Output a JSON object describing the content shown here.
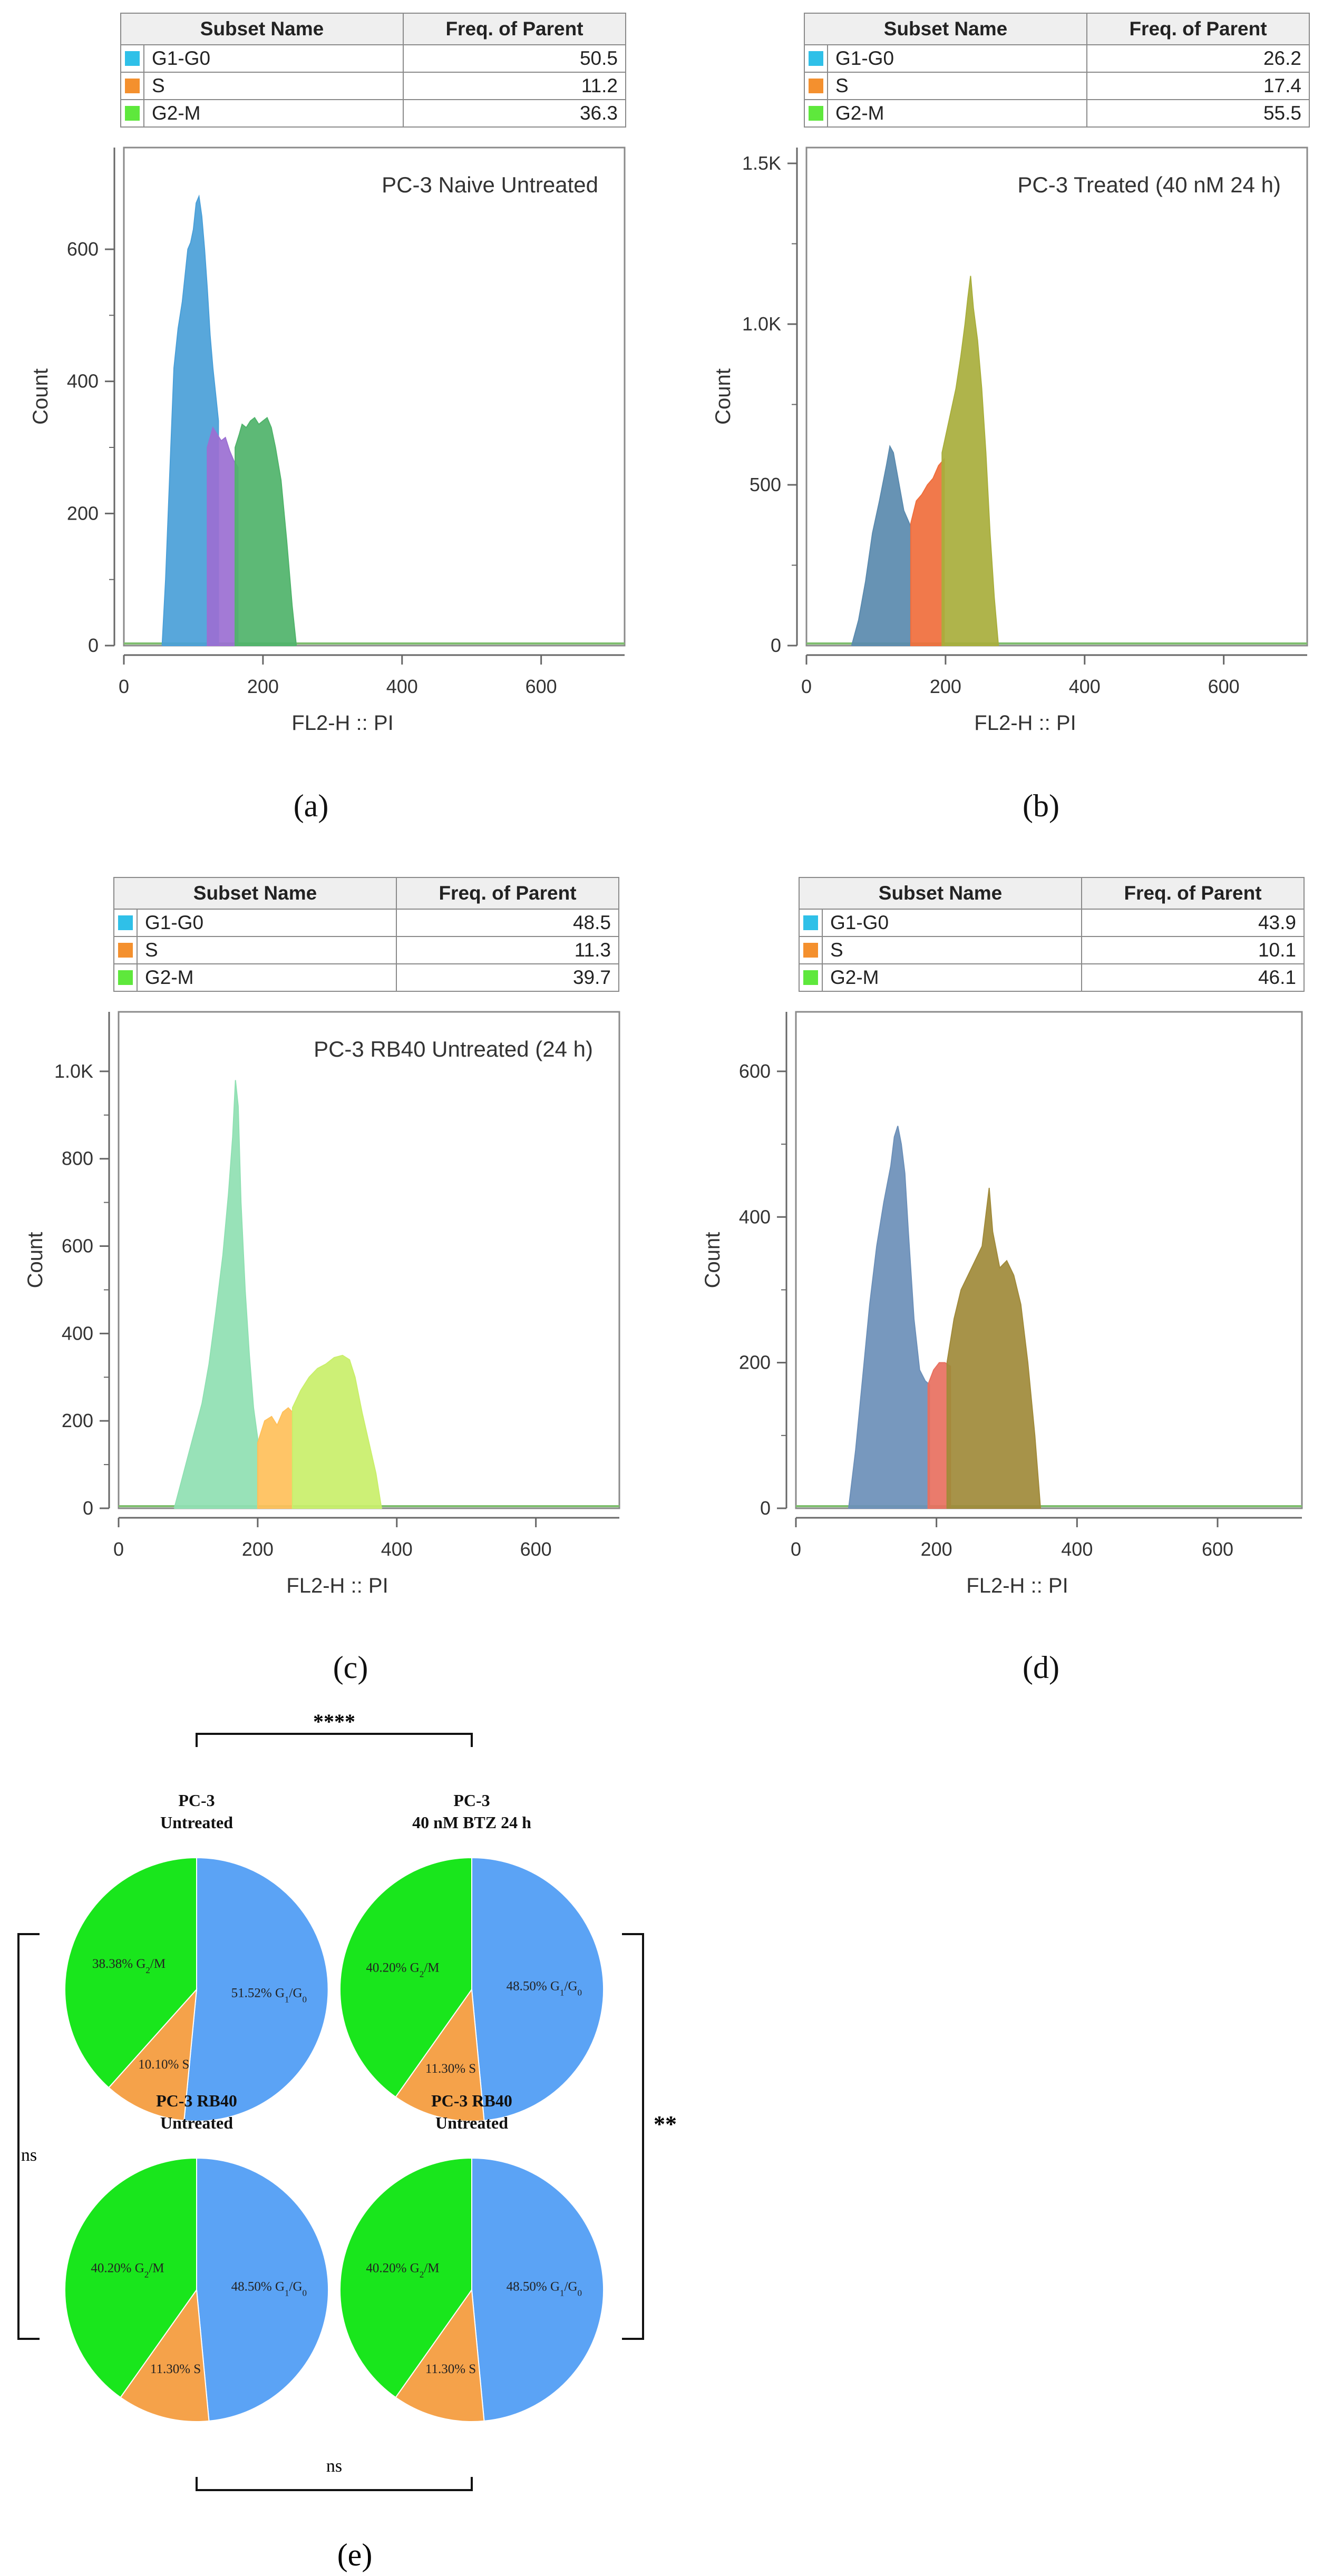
{
  "colors": {
    "g1": "#2fc0e8",
    "s": "#f4902e",
    "g2": "#5ee83c"
  },
  "table_headers": {
    "subset": "Subset Name",
    "freq": "Freq. of Parent"
  },
  "panels": [
    {
      "caption": "(a)",
      "title": "PC-3 Naive Untreated",
      "xlabel": "FL2-H :: PI",
      "ylabel": "Count",
      "xticks": [
        "0",
        "200",
        "400",
        "600"
      ],
      "yticks": [
        "0",
        "200",
        "400",
        "600"
      ],
      "subsets": [
        {
          "name": "G1-G0",
          "freq": "50.5"
        },
        {
          "name": "S",
          "freq": "11.2"
        },
        {
          "name": "G2-M",
          "freq": "36.3"
        }
      ]
    },
    {
      "caption": "(b)",
      "title": "PC-3 Treated (40 nM 24 h)",
      "xlabel": "FL2-H :: PI",
      "ylabel": "Count",
      "xticks": [
        "0",
        "200",
        "400",
        "600"
      ],
      "yticks": [
        "0",
        "500",
        "1.0K",
        "1.5K"
      ],
      "subsets": [
        {
          "name": "G1-G0",
          "freq": "26.2"
        },
        {
          "name": "S",
          "freq": "17.4"
        },
        {
          "name": "G2-M",
          "freq": "55.5"
        }
      ]
    },
    {
      "caption": "(c)",
      "title": "PC-3 RB40 Untreated (24 h)",
      "xlabel": "FL2-H :: PI",
      "ylabel": "Count",
      "xticks": [
        "0",
        "200",
        "400",
        "600"
      ],
      "yticks": [
        "0",
        "200",
        "400",
        "600",
        "800",
        "1.0K"
      ],
      "subsets": [
        {
          "name": "G1-G0",
          "freq": "48.5"
        },
        {
          "name": "S",
          "freq": "11.3"
        },
        {
          "name": "G2-M",
          "freq": "39.7"
        }
      ]
    },
    {
      "caption": "(d)",
      "title": "",
      "xlabel": "FL2-H :: PI",
      "ylabel": "Count",
      "xticks": [
        "0",
        "200",
        "400",
        "600"
      ],
      "yticks": [
        "0",
        "200",
        "400",
        "600"
      ],
      "subsets": [
        {
          "name": "G1-G0",
          "freq": "43.9"
        },
        {
          "name": "S",
          "freq": "10.1"
        },
        {
          "name": "G2-M",
          "freq": "46.1"
        }
      ]
    }
  ],
  "chart_data": [
    {
      "type": "area",
      "title": "PC-3 Naive Untreated",
      "xlabel": "FL2-H :: PI",
      "ylabel": "Count",
      "xlim": [
        0,
        720
      ],
      "ylim": [
        0,
        730
      ],
      "series": [
        {
          "name": "G1-G0",
          "color": "#4a9fd8",
          "points": [
            [
              55,
              0
            ],
            [
              60,
              100
            ],
            [
              66,
              260
            ],
            [
              72,
              420
            ],
            [
              78,
              480
            ],
            [
              84,
              520
            ],
            [
              88,
              560
            ],
            [
              92,
              600
            ],
            [
              96,
              610
            ],
            [
              100,
              630
            ],
            [
              104,
              670
            ],
            [
              108,
              680
            ],
            [
              112,
              650
            ],
            [
              116,
              600
            ],
            [
              120,
              540
            ],
            [
              124,
              470
            ],
            [
              128,
              420
            ],
            [
              132,
              380
            ],
            [
              136,
              340
            ]
          ]
        },
        {
          "name": "S",
          "color": "#9b6fd2",
          "points": [
            [
              120,
              300
            ],
            [
              128,
              330
            ],
            [
              134,
              320
            ],
            [
              140,
              310
            ],
            [
              146,
              315
            ],
            [
              152,
              295
            ],
            [
              158,
              280
            ],
            [
              164,
              270
            ]
          ]
        },
        {
          "name": "G2-M",
          "color": "#4fb36a",
          "points": [
            [
              160,
              300
            ],
            [
              166,
              320
            ],
            [
              170,
              335
            ],
            [
              176,
              330
            ],
            [
              182,
              340
            ],
            [
              188,
              345
            ],
            [
              194,
              335
            ],
            [
              200,
              340
            ],
            [
              206,
              345
            ],
            [
              212,
              330
            ],
            [
              218,
              300
            ],
            [
              226,
              250
            ],
            [
              234,
              160
            ],
            [
              242,
              60
            ],
            [
              248,
              0
            ]
          ]
        }
      ]
    },
    {
      "type": "area",
      "title": "PC-3 Treated (40 nM 24 h)",
      "xlabel": "FL2-H :: PI",
      "ylabel": "Count",
      "xlim": [
        0,
        720
      ],
      "ylim": [
        0,
        1500
      ],
      "series": [
        {
          "name": "G1-G0",
          "color": "#5a8aae",
          "points": [
            [
              65,
              0
            ],
            [
              75,
              80
            ],
            [
              85,
              200
            ],
            [
              95,
              350
            ],
            [
              105,
              450
            ],
            [
              115,
              560
            ],
            [
              120,
              620
            ],
            [
              125,
              600
            ],
            [
              130,
              540
            ],
            [
              140,
              420
            ],
            [
              150,
              370
            ]
          ]
        },
        {
          "name": "S",
          "color": "#f06e3c",
          "points": [
            [
              150,
              380
            ],
            [
              158,
              450
            ],
            [
              166,
              470
            ],
            [
              174,
              500
            ],
            [
              182,
              520
            ],
            [
              190,
              560
            ],
            [
              198,
              580
            ]
          ]
        },
        {
          "name": "G2-M",
          "color": "#a8ae3c",
          "points": [
            [
              195,
              600
            ],
            [
              205,
              700
            ],
            [
              215,
              800
            ],
            [
              222,
              900
            ],
            [
              228,
              1000
            ],
            [
              232,
              1080
            ],
            [
              236,
              1150
            ],
            [
              240,
              1050
            ],
            [
              246,
              950
            ],
            [
              252,
              800
            ],
            [
              258,
              600
            ],
            [
              264,
              350
            ],
            [
              270,
              150
            ],
            [
              276,
              0
            ]
          ]
        }
      ]
    },
    {
      "type": "area",
      "title": "PC-3 RB40 Untreated (24 h)",
      "xlabel": "FL2-H :: PI",
      "ylabel": "Count",
      "xlim": [
        0,
        720
      ],
      "ylim": [
        0,
        1100
      ],
      "series": [
        {
          "name": "G1-G0",
          "color": "#8fe0b2",
          "points": [
            [
              80,
              0
            ],
            [
              90,
              60
            ],
            [
              100,
              120
            ],
            [
              110,
              180
            ],
            [
              120,
              240
            ],
            [
              130,
              330
            ],
            [
              140,
              450
            ],
            [
              150,
              580
            ],
            [
              158,
              720
            ],
            [
              164,
              850
            ],
            [
              168,
              980
            ],
            [
              172,
              920
            ],
            [
              176,
              700
            ],
            [
              182,
              500
            ],
            [
              188,
              350
            ],
            [
              194,
              230
            ],
            [
              200,
              160
            ]
          ]
        },
        {
          "name": "S",
          "color": "#ffc05a",
          "points": [
            [
              200,
              150
            ],
            [
              210,
              200
            ],
            [
              220,
              210
            ],
            [
              228,
              190
            ],
            [
              236,
              220
            ],
            [
              244,
              230
            ],
            [
              250,
              220
            ]
          ]
        },
        {
          "name": "G2-M",
          "color": "#c9ef6a",
          "points": [
            [
              250,
              230
            ],
            [
              262,
              270
            ],
            [
              274,
              300
            ],
            [
              286,
              320
            ],
            [
              298,
              330
            ],
            [
              310,
              345
            ],
            [
              322,
              350
            ],
            [
              332,
              340
            ],
            [
              340,
              300
            ],
            [
              350,
              220
            ],
            [
              360,
              150
            ],
            [
              370,
              80
            ],
            [
              378,
              0
            ]
          ]
        }
      ]
    },
    {
      "type": "area",
      "title": "",
      "xlabel": "FL2-H :: PI",
      "ylabel": "Count",
      "xlim": [
        0,
        720
      ],
      "ylim": [
        0,
        660
      ],
      "series": [
        {
          "name": "G1-G0",
          "color": "#6b8fb8",
          "points": [
            [
              75,
              0
            ],
            [
              85,
              80
            ],
            [
              95,
              180
            ],
            [
              105,
              280
            ],
            [
              115,
              360
            ],
            [
              125,
              420
            ],
            [
              135,
              470
            ],
            [
              140,
              510
            ],
            [
              145,
              525
            ],
            [
              150,
              500
            ],
            [
              155,
              460
            ],
            [
              160,
              380
            ],
            [
              168,
              260
            ],
            [
              176,
              190
            ],
            [
              184,
              175
            ],
            [
              190,
              170
            ]
          ]
        },
        {
          "name": "S",
          "color": "#e87060",
          "points": [
            [
              188,
              170
            ],
            [
              196,
              190
            ],
            [
              204,
              200
            ],
            [
              212,
              200
            ],
            [
              220,
              195
            ]
          ]
        },
        {
          "name": "G2-M",
          "color": "#a08a3a",
          "points": [
            [
              215,
              200
            ],
            [
              225,
              260
            ],
            [
              235,
              300
            ],
            [
              245,
              320
            ],
            [
              255,
              340
            ],
            [
              265,
              360
            ],
            [
              270,
              400
            ],
            [
              275,
              440
            ],
            [
              280,
              380
            ],
            [
              290,
              330
            ],
            [
              300,
              340
            ],
            [
              310,
              320
            ],
            [
              320,
              280
            ],
            [
              330,
              200
            ],
            [
              340,
              100
            ],
            [
              348,
              0
            ]
          ]
        }
      ]
    },
    {
      "type": "pie",
      "title": "PC-3 Untreated",
      "slices": [
        {
          "label": "G1/G0",
          "value": 51.52
        },
        {
          "label": "S",
          "value": 10.1
        },
        {
          "label": "G2/M",
          "value": 38.38
        }
      ]
    },
    {
      "type": "pie",
      "title": "PC-3 40 nM BTZ 24 h",
      "slices": [
        {
          "label": "G1/G0",
          "value": 48.5
        },
        {
          "label": "S",
          "value": 11.3
        },
        {
          "label": "G2/M",
          "value": 40.2
        }
      ]
    },
    {
      "type": "pie",
      "title": "PC-3 RB40 Untreated",
      "slices": [
        {
          "label": "G1/G0",
          "value": 48.5
        },
        {
          "label": "S",
          "value": 11.3
        },
        {
          "label": "G2/M",
          "value": 40.2
        }
      ]
    },
    {
      "type": "pie",
      "title": "PC-3 RB40 Untreated",
      "slices": [
        {
          "label": "G1/G0",
          "value": 48.5
        },
        {
          "label": "S",
          "value": 11.3
        },
        {
          "label": "G2/M",
          "value": 40.2
        }
      ]
    }
  ],
  "pies": [
    {
      "title1": "PC-3",
      "title2": "Untreated",
      "g1": "51.52%",
      "s": "10.10%",
      "g2": "38.38%"
    },
    {
      "title1": "PC-3",
      "title2": "40 nM BTZ 24 h",
      "g1": "48.50%",
      "s": "11.30%",
      "g2": "40.20%"
    },
    {
      "title1": "PC-3 RB40",
      "title2": "Untreated",
      "g1": "48.50%",
      "s": "11.30%",
      "g2": "40.20%"
    },
    {
      "title1": "PC-3 RB40",
      "title2": "Untreated",
      "g1": "48.50%",
      "s": "11.30%",
      "g2": "40.20%"
    }
  ],
  "pie_colors": {
    "g1": "#5ba3f5",
    "s": "#f5a24a",
    "g2": "#19e61c"
  },
  "phase_labels": {
    "g1": "G",
    "g1_sub1": "1",
    "g1_mid": "/G",
    "g1_sub2": "0",
    "g2": "G",
    "g2_sub": "2",
    "g2_tail": "/M",
    "s": "S"
  },
  "significance": {
    "top": "****",
    "left": "ns",
    "right": "**",
    "bottom": "ns"
  },
  "caption_e": "(e)"
}
